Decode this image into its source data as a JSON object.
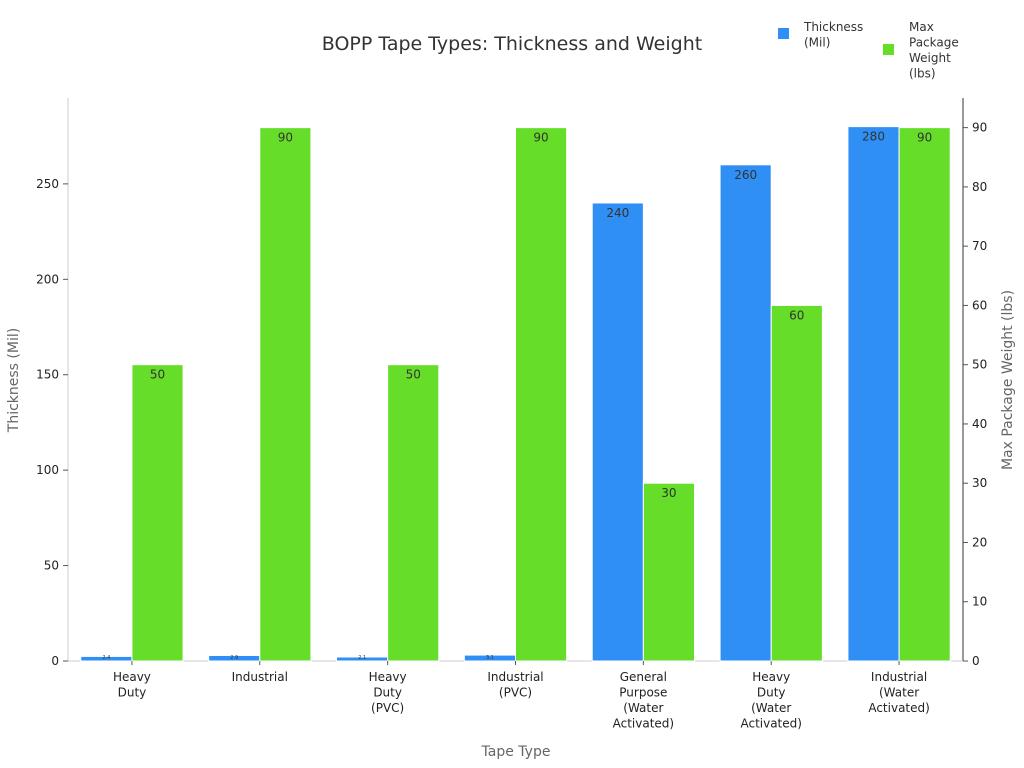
{
  "chart_data": {
    "type": "bar",
    "title": "BOPP Tape Types: Thickness and Weight",
    "x_label": "Tape Type",
    "y_label": "Thickness (Mil)",
    "y2_label": "Max Package Weight (lbs)",
    "categories": [
      "Heavy Duty",
      "Industrial",
      "Heavy Duty (PVC)",
      "Industrial (PVC)",
      "General Purpose (Water Activated)",
      "Heavy Duty (Water Activated)",
      "Industrial (Water Activated)"
    ],
    "series": [
      {
        "name": "Thickness (Mil)",
        "color": "#2f8ff5",
        "values": [
          2.4,
          2.9,
          2.1,
          3.1,
          240,
          260,
          280
        ]
      },
      {
        "name": "Max Package Weight (lbs)",
        "color": "#66dd28",
        "axis": "y2",
        "values": [
          50,
          90,
          50,
          90,
          30,
          60,
          90
        ]
      }
    ],
    "ylim": [
      0,
      295
    ],
    "yticks": [
      0,
      50,
      100,
      150,
      200,
      250
    ],
    "y2lim": [
      0,
      95
    ],
    "y2ticks": [
      0,
      10,
      20,
      30,
      40,
      50,
      60,
      70,
      80,
      90
    ],
    "legend": "top-right"
  }
}
